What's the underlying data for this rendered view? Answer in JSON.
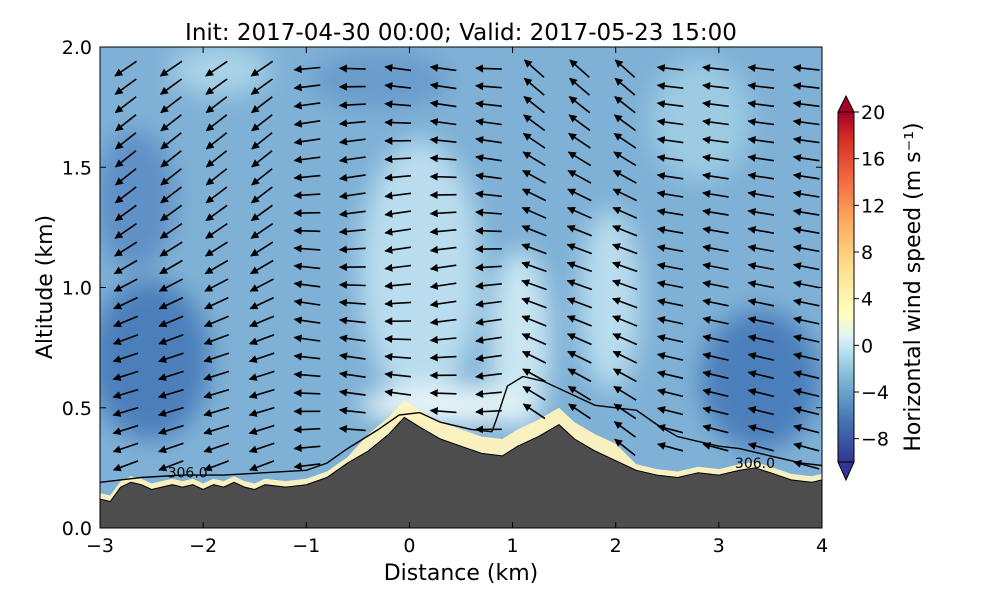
{
  "chart_data": {
    "type": "contourf",
    "title": "Init: 2017-04-30 00:00; Valid: 2017-05-23 15:00",
    "xlabel": "Distance (km)",
    "ylabel": "Altitude (km)",
    "xlim": [
      -3,
      4
    ],
    "ylim": [
      0,
      2.0
    ],
    "xticks": [
      "−3",
      "−2",
      "−1",
      "0",
      "1",
      "2",
      "3",
      "4"
    ],
    "yticks": [
      "0.0",
      "0.5",
      "1.0",
      "1.5",
      "2.0"
    ],
    "colorbar": {
      "label": "Horizontal wind speed (m s⁻¹)",
      "range": [
        -10,
        20
      ],
      "ticks": [
        "20",
        "16",
        "12",
        "8",
        "4",
        "0",
        "−4",
        "−8"
      ],
      "colormap": "RdYlBu_r",
      "extend": "both"
    },
    "terrain": {
      "color": "#4d4d4d",
      "profile": [
        [
          -3.0,
          0.12
        ],
        [
          -2.9,
          0.11
        ],
        [
          -2.8,
          0.17
        ],
        [
          -2.7,
          0.19
        ],
        [
          -2.6,
          0.18
        ],
        [
          -2.5,
          0.16
        ],
        [
          -2.4,
          0.17
        ],
        [
          -2.3,
          0.18
        ],
        [
          -2.2,
          0.17
        ],
        [
          -2.1,
          0.18
        ],
        [
          -2.0,
          0.16
        ],
        [
          -1.9,
          0.18
        ],
        [
          -1.8,
          0.17
        ],
        [
          -1.7,
          0.19
        ],
        [
          -1.6,
          0.17
        ],
        [
          -1.5,
          0.16
        ],
        [
          -1.4,
          0.18
        ],
        [
          -1.2,
          0.17
        ],
        [
          -1.0,
          0.18
        ],
        [
          -0.8,
          0.21
        ],
        [
          -0.6,
          0.27
        ],
        [
          -0.4,
          0.32
        ],
        [
          -0.2,
          0.39
        ],
        [
          -0.05,
          0.46
        ],
        [
          0.1,
          0.42
        ],
        [
          0.3,
          0.37
        ],
        [
          0.5,
          0.34
        ],
        [
          0.7,
          0.31
        ],
        [
          0.9,
          0.3
        ],
        [
          1.05,
          0.34
        ],
        [
          1.25,
          0.38
        ],
        [
          1.45,
          0.43
        ],
        [
          1.6,
          0.37
        ],
        [
          1.8,
          0.32
        ],
        [
          2.0,
          0.28
        ],
        [
          2.2,
          0.24
        ],
        [
          2.4,
          0.22
        ],
        [
          2.6,
          0.21
        ],
        [
          2.8,
          0.23
        ],
        [
          3.0,
          0.22
        ],
        [
          3.2,
          0.24
        ],
        [
          3.35,
          0.25
        ],
        [
          3.5,
          0.23
        ],
        [
          3.7,
          0.2
        ],
        [
          3.9,
          0.19
        ],
        [
          4.0,
          0.2
        ]
      ]
    },
    "contour_306": {
      "level_label": "306.0",
      "label_positions": [
        [
          -2.15,
          0.23
        ],
        [
          3.35,
          0.27
        ]
      ],
      "line": [
        [
          -3.0,
          0.19
        ],
        [
          -2.6,
          0.21
        ],
        [
          -2.2,
          0.22
        ],
        [
          -1.8,
          0.22
        ],
        [
          -1.4,
          0.23
        ],
        [
          -1.0,
          0.24
        ],
        [
          -0.8,
          0.27
        ],
        [
          -0.6,
          0.33
        ],
        [
          -0.3,
          0.41
        ],
        [
          -0.1,
          0.47
        ],
        [
          0.1,
          0.48
        ],
        [
          0.3,
          0.44
        ],
        [
          0.6,
          0.41
        ],
        [
          0.8,
          0.4
        ],
        [
          0.85,
          0.46
        ],
        [
          0.95,
          0.59
        ],
        [
          1.1,
          0.63
        ],
        [
          1.3,
          0.61
        ],
        [
          1.5,
          0.57
        ],
        [
          1.7,
          0.53
        ],
        [
          1.8,
          0.51
        ],
        [
          2.0,
          0.5
        ],
        [
          2.2,
          0.49
        ],
        [
          2.4,
          0.43
        ],
        [
          2.6,
          0.38
        ],
        [
          2.8,
          0.36
        ],
        [
          3.0,
          0.34
        ],
        [
          3.2,
          0.33
        ],
        [
          3.5,
          0.3
        ],
        [
          3.8,
          0.27
        ],
        [
          4.0,
          0.26
        ]
      ]
    },
    "wind_field": {
      "description_levels": "negative values: westward flow",
      "regions": [
        {
          "x": [
            -3,
            -1.2
          ],
          "z": [
            0.15,
            2.0
          ],
          "speed": -8
        },
        {
          "x": [
            -0.6,
            1.8
          ],
          "z": [
            0.6,
            2.0
          ],
          "speed": -4
        },
        {
          "x": [
            2.8,
            4
          ],
          "z": [
            0.3,
            1.0
          ],
          "speed": -8
        },
        {
          "x": [
            -0.4,
            1.6
          ],
          "z": [
            0.3,
            0.55
          ],
          "speed": 1
        }
      ]
    }
  }
}
